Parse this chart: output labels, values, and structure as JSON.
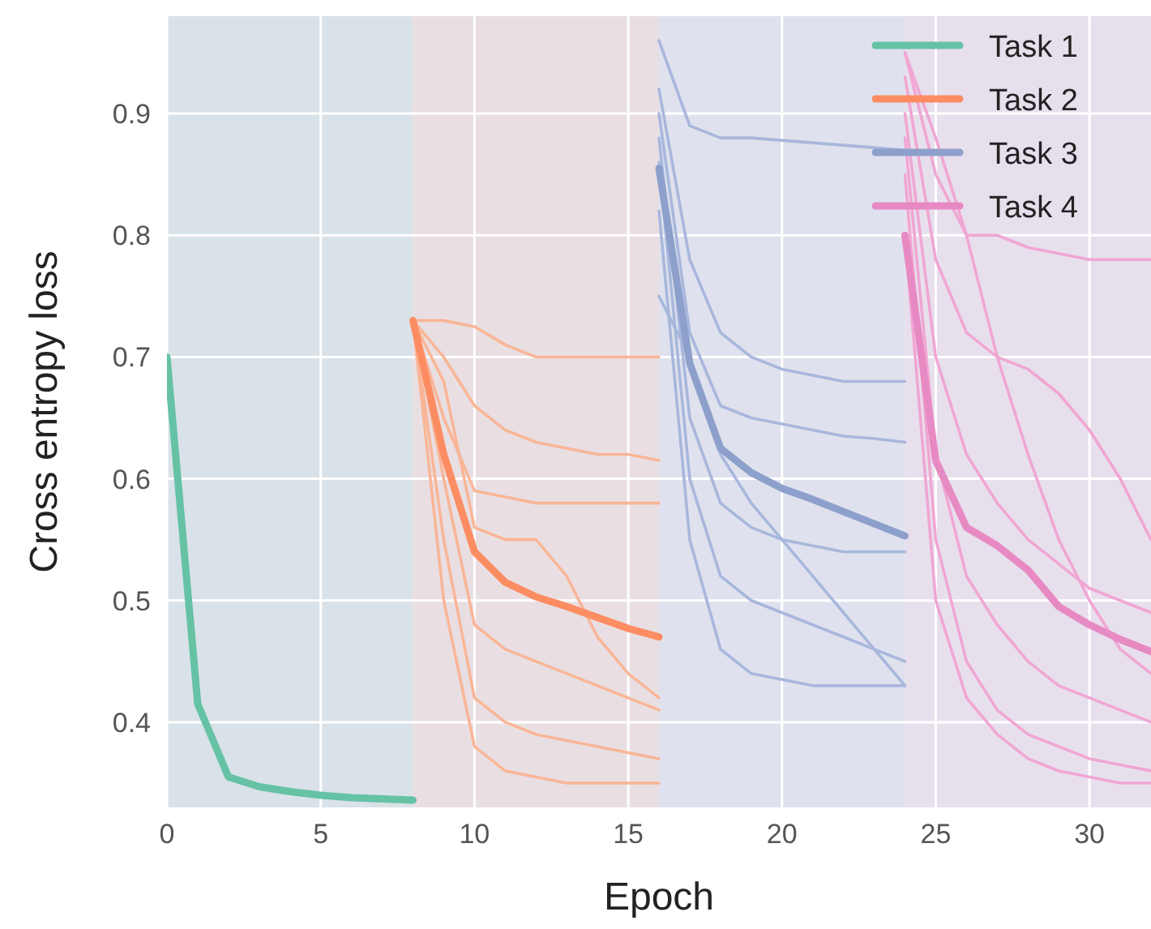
{
  "chart_data": {
    "type": "line",
    "xlabel": "Epoch",
    "ylabel": "Cross entropy loss",
    "xlim": [
      0,
      32
    ],
    "ylim": [
      0.33,
      0.98
    ],
    "xticks": [
      0,
      5,
      10,
      15,
      20,
      25,
      30
    ],
    "yticks": [
      0.4,
      0.5,
      0.6,
      0.7,
      0.8,
      0.9
    ],
    "grid": true,
    "legend": "top right",
    "line_style": "solid",
    "marker": "none",
    "bands": [
      {
        "axis": "x",
        "from": 0,
        "to": 8,
        "color": "#d9e2e8"
      },
      {
        "axis": "x",
        "from": 8,
        "to": 16,
        "color": "#e9dfe3"
      },
      {
        "axis": "x",
        "from": 16,
        "to": 24,
        "color": "#dfe2ee"
      },
      {
        "axis": "x",
        "from": 24,
        "to": 32,
        "color": "#e8dfed"
      }
    ],
    "series": [
      {
        "color": "#f9b697",
        "x": [
          8,
          9,
          10,
          11,
          12,
          13,
          14,
          15,
          16
        ],
        "values": [
          0.73,
          0.73,
          0.725,
          0.71,
          0.7,
          0.7,
          0.7,
          0.7,
          0.7
        ]
      },
      {
        "color": "#f9b697",
        "x": [
          8,
          9,
          10,
          11,
          12,
          13,
          14,
          15,
          16
        ],
        "values": [
          0.73,
          0.7,
          0.66,
          0.64,
          0.63,
          0.625,
          0.62,
          0.62,
          0.615
        ]
      },
      {
        "color": "#f9b697",
        "x": [
          8,
          9,
          10,
          11,
          12,
          13,
          14,
          15,
          16
        ],
        "values": [
          0.73,
          0.65,
          0.59,
          0.585,
          0.58,
          0.58,
          0.58,
          0.58,
          0.58
        ]
      },
      {
        "color": "#f9b697",
        "x": [
          8,
          9,
          10,
          11,
          12,
          13,
          14,
          15,
          16
        ],
        "values": [
          0.73,
          0.6,
          0.48,
          0.46,
          0.45,
          0.44,
          0.43,
          0.42,
          0.41
        ]
      },
      {
        "color": "#f9b697",
        "x": [
          8,
          9,
          10,
          11,
          12,
          13,
          14,
          15,
          16
        ],
        "values": [
          0.73,
          0.55,
          0.42,
          0.4,
          0.39,
          0.385,
          0.38,
          0.375,
          0.37
        ]
      },
      {
        "color": "#f9b697",
        "x": [
          8,
          9,
          10,
          11,
          12,
          13,
          14,
          15,
          16
        ],
        "values": [
          0.73,
          0.68,
          0.56,
          0.55,
          0.55,
          0.52,
          0.47,
          0.44,
          0.42
        ]
      },
      {
        "color": "#f9b697",
        "x": [
          8,
          9,
          10,
          11,
          12,
          13,
          14,
          15,
          16
        ],
        "values": [
          0.73,
          0.5,
          0.38,
          0.36,
          0.355,
          0.35,
          0.35,
          0.35,
          0.35
        ]
      },
      {
        "color": "#a8b7dc",
        "x": [
          16,
          17,
          18,
          19,
          20,
          21,
          22,
          23,
          24
        ],
        "values": [
          0.96,
          0.89,
          0.88,
          0.88,
          0.878,
          0.876,
          0.874,
          0.872,
          0.87
        ]
      },
      {
        "color": "#a8b7dc",
        "x": [
          16,
          17,
          18,
          19,
          20,
          21,
          22,
          23,
          24
        ],
        "values": [
          0.92,
          0.78,
          0.72,
          0.7,
          0.69,
          0.685,
          0.68,
          0.68,
          0.68
        ]
      },
      {
        "color": "#a8b7dc",
        "x": [
          16,
          17,
          18,
          19,
          20,
          21,
          22,
          23,
          24
        ],
        "values": [
          0.9,
          0.72,
          0.66,
          0.65,
          0.645,
          0.64,
          0.635,
          0.633,
          0.63
        ]
      },
      {
        "color": "#a8b7dc",
        "x": [
          16,
          17,
          18,
          19,
          20,
          21,
          22,
          23,
          24
        ],
        "values": [
          0.88,
          0.65,
          0.58,
          0.56,
          0.55,
          0.545,
          0.54,
          0.54,
          0.54
        ]
      },
      {
        "color": "#a8b7dc",
        "x": [
          16,
          17,
          18,
          19,
          20,
          21,
          22,
          23,
          24
        ],
        "values": [
          0.86,
          0.6,
          0.52,
          0.5,
          0.49,
          0.48,
          0.47,
          0.46,
          0.45
        ]
      },
      {
        "color": "#a8b7dc",
        "x": [
          16,
          17,
          18,
          19,
          20,
          21,
          22,
          23,
          24
        ],
        "values": [
          0.82,
          0.55,
          0.46,
          0.44,
          0.435,
          0.43,
          0.43,
          0.43,
          0.43
        ]
      },
      {
        "color": "#a8b7dc",
        "x": [
          16,
          17,
          18,
          19,
          20,
          21,
          22,
          23,
          24
        ],
        "values": [
          0.75,
          0.7,
          0.62,
          0.58,
          0.55,
          0.52,
          0.49,
          0.46,
          0.43
        ]
      },
      {
        "color": "#f0a6d3",
        "x": [
          24,
          25,
          26,
          27,
          28,
          29,
          30,
          31,
          32
        ],
        "values": [
          0.95,
          0.85,
          0.8,
          0.8,
          0.79,
          0.785,
          0.78,
          0.78,
          0.78
        ]
      },
      {
        "color": "#f0a6d3",
        "x": [
          24,
          25,
          26,
          27,
          28,
          29,
          30,
          31,
          32
        ],
        "values": [
          0.93,
          0.78,
          0.72,
          0.7,
          0.69,
          0.67,
          0.64,
          0.6,
          0.55
        ]
      },
      {
        "color": "#f0a6d3",
        "x": [
          24,
          25,
          26,
          27,
          28,
          29,
          30,
          31,
          32
        ],
        "values": [
          0.9,
          0.7,
          0.62,
          0.58,
          0.55,
          0.53,
          0.51,
          0.5,
          0.49
        ]
      },
      {
        "color": "#f0a6d3",
        "x": [
          24,
          25,
          26,
          27,
          28,
          29,
          30,
          31,
          32
        ],
        "values": [
          0.88,
          0.62,
          0.52,
          0.48,
          0.45,
          0.43,
          0.42,
          0.41,
          0.4
        ]
      },
      {
        "color": "#f0a6d3",
        "x": [
          24,
          25,
          26,
          27,
          28,
          29,
          30,
          31,
          32
        ],
        "values": [
          0.85,
          0.55,
          0.45,
          0.41,
          0.39,
          0.38,
          0.37,
          0.365,
          0.36
        ]
      },
      {
        "color": "#f0a6d3",
        "x": [
          24,
          25,
          26,
          27,
          28,
          29,
          30,
          31,
          32
        ],
        "values": [
          0.8,
          0.5,
          0.42,
          0.39,
          0.37,
          0.36,
          0.355,
          0.35,
          0.35
        ]
      },
      {
        "color": "#f0a6d3",
        "x": [
          24,
          25,
          26,
          27,
          28,
          29,
          30,
          31,
          32
        ],
        "values": [
          0.95,
          0.88,
          0.8,
          0.7,
          0.62,
          0.55,
          0.5,
          0.46,
          0.44
        ]
      },
      {
        "name": "Task 1",
        "color": "#66c2a5",
        "x": [
          0,
          1,
          2,
          3,
          4,
          5,
          6,
          7,
          8
        ],
        "values": [
          0.7,
          0.415,
          0.355,
          0.347,
          0.343,
          0.34,
          0.338,
          0.337,
          0.336
        ]
      },
      {
        "name": "Task 2",
        "color": "#fc8d62",
        "x": [
          8,
          9,
          10,
          11,
          12,
          13,
          14,
          15,
          16
        ],
        "values": [
          0.73,
          0.62,
          0.54,
          0.515,
          0.503,
          0.495,
          0.486,
          0.477,
          0.47
        ]
      },
      {
        "name": "Task 3",
        "color": "#8da0cb",
        "x": [
          16,
          17,
          18,
          19,
          20,
          21,
          22,
          23,
          24
        ],
        "values": [
          0.855,
          0.695,
          0.625,
          0.605,
          0.592,
          0.583,
          0.573,
          0.563,
          0.553
        ]
      },
      {
        "name": "Task 4",
        "color": "#e78ac3",
        "x": [
          24,
          25,
          26,
          27,
          28,
          29,
          30,
          31,
          32
        ],
        "values": [
          0.8,
          0.615,
          0.56,
          0.545,
          0.525,
          0.495,
          0.48,
          0.468,
          0.458
        ]
      }
    ]
  }
}
